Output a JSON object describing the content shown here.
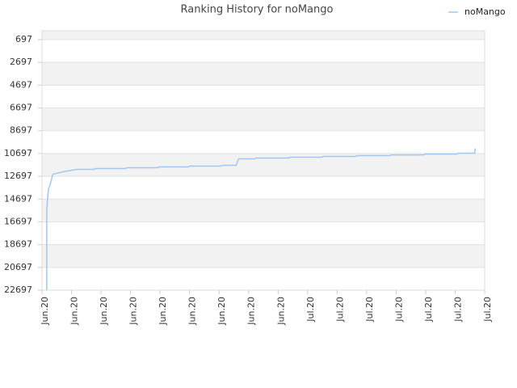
{
  "chart_data": {
    "type": "line",
    "title": "Ranking History for noMango",
    "xlim": [
      0,
      15
    ],
    "xticks": [
      {
        "value": 0,
        "label": "Jun.20"
      },
      {
        "value": 1,
        "label": "Jun.20"
      },
      {
        "value": 2,
        "label": "Jun.20"
      },
      {
        "value": 3,
        "label": "Jun.20"
      },
      {
        "value": 4,
        "label": "Jun.20"
      },
      {
        "value": 5,
        "label": "Jun.20"
      },
      {
        "value": 6,
        "label": "Jun.20"
      },
      {
        "value": 7,
        "label": "Jun.20"
      },
      {
        "value": 8,
        "label": "Jun.20"
      },
      {
        "value": 9,
        "label": "Jul.20"
      },
      {
        "value": 10,
        "label": "Jul.20"
      },
      {
        "value": 11,
        "label": "Jul.20"
      },
      {
        "value": 12,
        "label": "Jul.20"
      },
      {
        "value": 13,
        "label": "Jul.20"
      },
      {
        "value": 14,
        "label": "Jul.20"
      },
      {
        "value": 15,
        "label": "Jul.20"
      }
    ],
    "ylim": [
      22697,
      -84
    ],
    "y_inverted": true,
    "yticks": [
      697,
      2697,
      4697,
      6697,
      8697,
      10697,
      12697,
      14697,
      16697,
      18697,
      20697,
      22697
    ],
    "banded_background": true,
    "legend_position": "top-right",
    "x": [
      0.16,
      0.16,
      0.19,
      0.22,
      0.27,
      0.36,
      0.38,
      0.71,
      1.18,
      1.78,
      1.81,
      2.82,
      2.88,
      3.92,
      3.95,
      4.96,
      5.01,
      6.05,
      6.11,
      6.58,
      6.66,
      7.21,
      7.26,
      8.36,
      8.41,
      9.48,
      9.53,
      10.63,
      10.68,
      11.78,
      11.84,
      12.93,
      12.99,
      14.05,
      14.11,
      14.66,
      14.68
    ],
    "series": [
      {
        "name": "noMango",
        "color": "#9ec8f0",
        "values": [
          22697,
          15700,
          14630,
          13780,
          13500,
          12580,
          12510,
          12300,
          12085,
          12085,
          12015,
          12015,
          11945,
          11945,
          11875,
          11875,
          11800,
          11800,
          11730,
          11730,
          11165,
          11165,
          11095,
          11095,
          11025,
          11025,
          10955,
          10955,
          10885,
          10885,
          10815,
          10815,
          10745,
          10745,
          10670,
          10670,
          10250
        ]
      }
    ]
  }
}
